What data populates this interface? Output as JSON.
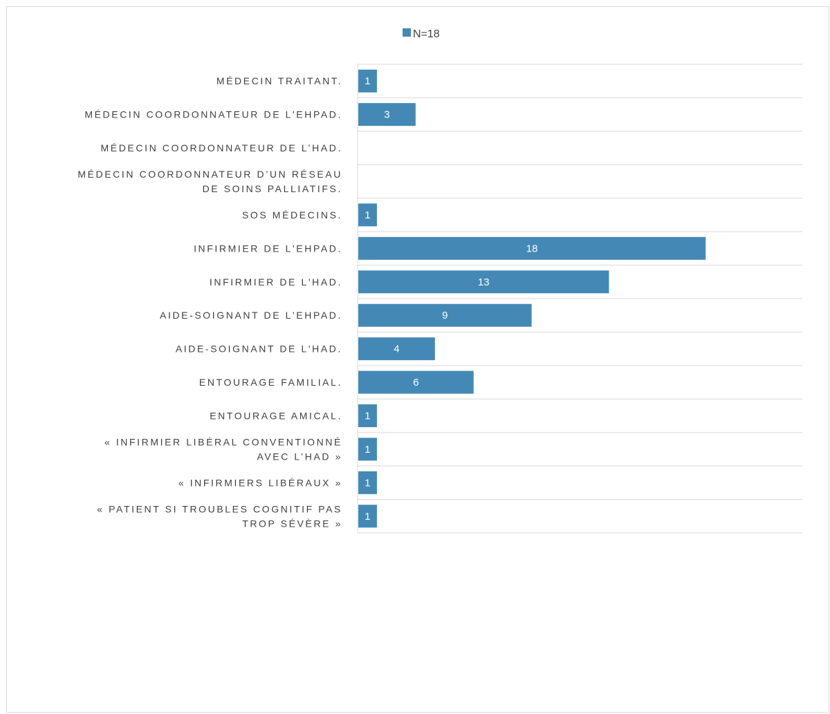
{
  "chart_data": {
    "type": "bar",
    "orientation": "horizontal",
    "legend_position": "top",
    "grid": true,
    "xlim": [
      0,
      23
    ],
    "series": [
      {
        "name": "N=18",
        "color": "#4489b5",
        "values": [
          1,
          3,
          null,
          null,
          1,
          18,
          13,
          9,
          4,
          6,
          1,
          1,
          1,
          1
        ]
      }
    ],
    "categories": [
      "MÉDECIN TRAITANT.",
      "MÉDECIN COORDONNATEUR DE L'EHPAD.",
      "MÉDECIN COORDONNATEUR DE L’HAD.",
      "MÉDECIN COORDONNATEUR D’UN RÉSEAU DE SOINS PALLIATIFS.",
      "SOS MÉDECINS.",
      "INFIRMIER DE L'EHPAD.",
      "INFIRMIER DE L'HAD.",
      "AIDE-SOIGNANT DE L'EHPAD.",
      "AIDE-SOIGNANT DE L'HAD.",
      "ENTOURAGE FAMILIAL.",
      "ENTOURAGE AMICAL.",
      "« INFIRMIER LIBÉRAL CONVENTIONNÉ AVEC L’HAD »",
      "« INFIRMIERS LIBÉRAUX »",
      "« PATIENT SI TROUBLES COGNITIF PAS TROP  SÉVÈRE »"
    ],
    "category_lines": [
      [
        "MÉDECIN TRAITANT."
      ],
      [
        "MÉDECIN COORDONNATEUR DE L'EHPAD."
      ],
      [
        "MÉDECIN COORDONNATEUR DE L’HAD."
      ],
      [
        "MÉDECIN COORDONNATEUR D’UN RÉSEAU",
        "DE SOINS PALLIATIFS."
      ],
      [
        "SOS MÉDECINS."
      ],
      [
        "INFIRMIER DE L'EHPAD."
      ],
      [
        "INFIRMIER DE L'HAD."
      ],
      [
        "AIDE-SOIGNANT DE L'EHPAD."
      ],
      [
        "AIDE-SOIGNANT DE L'HAD."
      ],
      [
        "ENTOURAGE FAMILIAL."
      ],
      [
        "ENTOURAGE AMICAL."
      ],
      [
        "« INFIRMIER LIBÉRAL CONVENTIONNÉ",
        "AVEC L’HAD »"
      ],
      [
        "« INFIRMIERS LIBÉRAUX »"
      ],
      [
        "« PATIENT SI TROUBLES COGNITIF PAS",
        "TROP  SÉVÈRE »"
      ]
    ]
  },
  "colors": {
    "bar": "#4489b5",
    "grid": "#d9d9d9",
    "label_text": "#404040",
    "value_text": "#ffffff"
  }
}
